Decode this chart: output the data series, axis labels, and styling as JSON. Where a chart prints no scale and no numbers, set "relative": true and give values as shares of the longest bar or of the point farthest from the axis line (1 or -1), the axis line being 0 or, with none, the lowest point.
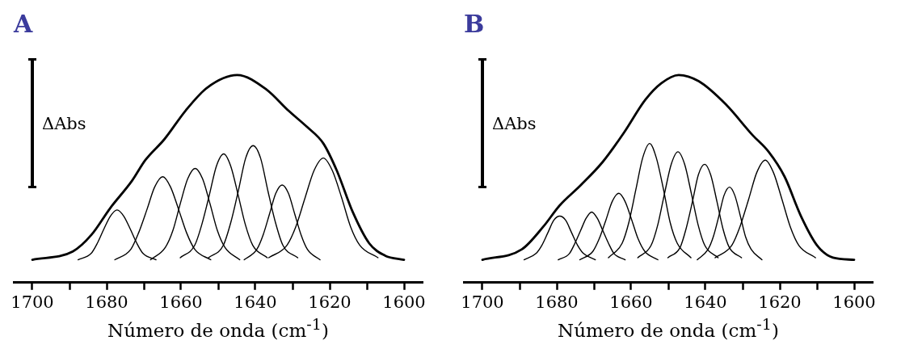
{
  "chart_data": [
    {
      "type": "line",
      "title": "A",
      "xlabel": "Número de onda (cm$^{-1}$)",
      "annotations": [
        "ΔAbs"
      ],
      "relative": true,
      "legend": false,
      "marker": "none",
      "line_style": "solid",
      "xlim": [
        1705,
        1595
      ],
      "xticks": [
        1700,
        {
          "value": 1690,
          "label": null
        },
        1680,
        {
          "value": 1670,
          "label": null
        },
        1660,
        {
          "value": 1650,
          "label": null
        },
        1640,
        {
          "value": 1630,
          "label": null
        },
        1620,
        {
          "value": 1610,
          "label": null
        },
        1600
      ],
      "series": [
        {
          "color": "#000000",
          "x": [
            1700,
            1689.1,
            1684.1,
            1679,
            1673.2,
            1669.6,
            1664.5,
            1658.7,
            1652.9,
            1644.9,
            1637,
            1631.2,
            1626.1,
            1621.7,
            1618.1,
            1613.8,
            1609.4,
            1605.1,
            1600
          ],
          "values": [
            0.11,
            0.15,
            0.23,
            0.36,
            0.49,
            0.59,
            0.69,
            0.83,
            0.94,
            1.0,
            0.93,
            0.83,
            0.75,
            0.67,
            0.54,
            0.34,
            0.19,
            0.13,
            0.11
          ]
        },
        {
          "color": "#000000",
          "x": [
            1687.7,
            1684.2,
            1682.5,
            1680.7,
            1679.0,
            1677.2,
            1675.4,
            1673.7,
            1671.9,
            1670.2,
            1666.7
          ],
          "values": [
            0.11,
            0.14,
            0.19,
            0.26,
            0.32,
            0.35,
            0.32,
            0.26,
            0.19,
            0.14,
            0.11
          ]
        },
        {
          "color": "#000000",
          "x": [
            1677.8,
            1673.5,
            1671.4,
            1669.2,
            1667.1,
            1664.9,
            1662.8,
            1660.6,
            1658.5,
            1656.3,
            1652.0
          ],
          "values": [
            0.11,
            0.16,
            0.24,
            0.35,
            0.46,
            0.51,
            0.46,
            0.35,
            0.24,
            0.16,
            0.11
          ]
        },
        {
          "color": "#000000",
          "x": [
            1668.2,
            1664.2,
            1662.2,
            1660.2,
            1658.2,
            1656.2,
            1654.2,
            1652.2,
            1650.2,
            1648.2,
            1644.2
          ],
          "values": [
            0.11,
            0.17,
            0.25,
            0.38,
            0.5,
            0.55,
            0.5,
            0.38,
            0.25,
            0.17,
            0.11
          ]
        },
        {
          "color": "#000000",
          "x": [
            1660.2,
            1656.3,
            1654.4,
            1652.4,
            1650.5,
            1648.5,
            1646.6,
            1644.6,
            1642.7,
            1640.7,
            1636.8
          ],
          "values": [
            0.12,
            0.18,
            0.28,
            0.42,
            0.56,
            0.62,
            0.56,
            0.42,
            0.28,
            0.18,
            0.12
          ]
        },
        {
          "color": "#000000",
          "x": [
            1652.6,
            1648.6,
            1646.6,
            1644.6,
            1642.6,
            1640.6,
            1638.6,
            1636.6,
            1634.6,
            1632.6,
            1628.6
          ],
          "values": [
            0.12,
            0.18,
            0.29,
            0.44,
            0.6,
            0.66,
            0.6,
            0.44,
            0.29,
            0.18,
            0.12
          ]
        },
        {
          "color": "#000000",
          "x": [
            1643.0,
            1639.6,
            1637.9,
            1636.2,
            1634.5,
            1632.8,
            1631.1,
            1629.4,
            1627.7,
            1626.0,
            1622.6
          ],
          "values": [
            0.11,
            0.16,
            0.23,
            0.33,
            0.43,
            0.47,
            0.43,
            0.33,
            0.23,
            0.16,
            0.11
          ]
        },
        {
          "color": "#000000",
          "x": [
            1636.4,
            1631.5,
            1629.1,
            1626.6,
            1624.2,
            1621.7,
            1619.3,
            1616.8,
            1614.4,
            1611.9,
            1607.0
          ],
          "values": [
            0.12,
            0.18,
            0.27,
            0.41,
            0.54,
            0.6,
            0.54,
            0.41,
            0.27,
            0.18,
            0.12
          ]
        }
      ]
    },
    {
      "type": "line",
      "title": "B",
      "xlabel": "Número de onda (cm$^{-1}$)",
      "annotations": [
        "ΔAbs"
      ],
      "relative": true,
      "legend": false,
      "marker": "none",
      "line_style": "solid",
      "xlim": [
        1705,
        1595
      ],
      "xticks": [
        1700,
        {
          "value": 1690,
          "label": null
        },
        1680,
        {
          "value": 1670,
          "label": null
        },
        1660,
        {
          "value": 1650,
          "label": null
        },
        1640,
        {
          "value": 1630,
          "label": null
        },
        1620,
        {
          "value": 1610,
          "label": null
        },
        1600
      ],
      "series": [
        {
          "color": "#000000",
          "x": [
            1700,
            1689.4,
            1683.6,
            1679.3,
            1673.5,
            1667.7,
            1662,
            1656.2,
            1651.9,
            1647.2,
            1641.8,
            1634.6,
            1627.3,
            1623,
            1618.7,
            1614.3,
            1610,
            1605.7,
            1600
          ],
          "values": [
            0.11,
            0.16,
            0.27,
            0.37,
            0.47,
            0.58,
            0.72,
            0.88,
            0.96,
            1.0,
            0.97,
            0.86,
            0.71,
            0.63,
            0.51,
            0.32,
            0.18,
            0.12,
            0.11
          ]
        },
        {
          "color": "#000000",
          "x": [
            1688.8,
            1685.6,
            1684.0,
            1682.4,
            1680.8,
            1679.2,
            1677.6,
            1676.0,
            1674.4,
            1672.8,
            1669.6
          ],
          "values": [
            0.11,
            0.14,
            0.18,
            0.24,
            0.3,
            0.32,
            0.3,
            0.24,
            0.18,
            0.14,
            0.11
          ]
        },
        {
          "color": "#000000",
          "x": [
            1679.6,
            1676.6,
            1675.1,
            1673.6,
            1672.1,
            1670.6,
            1669.1,
            1667.6,
            1666.1,
            1664.6,
            1661.6
          ],
          "values": [
            0.11,
            0.14,
            0.19,
            0.25,
            0.31,
            0.34,
            0.31,
            0.25,
            0.19,
            0.14,
            0.11
          ]
        },
        {
          "color": "#000000",
          "x": [
            1673.8,
            1670.3,
            1668.6,
            1666.8,
            1665.1,
            1663.3,
            1661.6,
            1659.8,
            1658.1,
            1656.3,
            1652.8
          ],
          "values": [
            0.11,
            0.15,
            0.21,
            0.3,
            0.39,
            0.43,
            0.39,
            0.3,
            0.21,
            0.15,
            0.11
          ]
        },
        {
          "color": "#000000",
          "x": [
            1666.1,
            1662.4,
            1660.6,
            1658.7,
            1656.9,
            1655.0,
            1653.2,
            1651.3,
            1649.5,
            1647.6,
            1643.9
          ],
          "values": [
            0.12,
            0.19,
            0.29,
            0.45,
            0.6,
            0.67,
            0.6,
            0.45,
            0.29,
            0.19,
            0.12
          ]
        },
        {
          "color": "#000000",
          "x": [
            1658.2,
            1654.6,
            1652.8,
            1651.0,
            1649.2,
            1647.4,
            1645.6,
            1643.8,
            1642.0,
            1640.2,
            1636.6
          ],
          "values": [
            0.12,
            0.18,
            0.28,
            0.43,
            0.57,
            0.63,
            0.57,
            0.43,
            0.28,
            0.18,
            0.12
          ]
        },
        {
          "color": "#000000",
          "x": [
            1650.1,
            1646.8,
            1645.2,
            1643.5,
            1641.9,
            1640.2,
            1638.6,
            1636.9,
            1635.3,
            1633.6,
            1630.3
          ],
          "values": [
            0.12,
            0.17,
            0.26,
            0.39,
            0.52,
            0.57,
            0.52,
            0.39,
            0.26,
            0.17,
            0.12
          ]
        },
        {
          "color": "#000000",
          "x": [
            1642.2,
            1639.3,
            1637.9,
            1636.4,
            1635.0,
            1633.5,
            1632.1,
            1630.6,
            1629.2,
            1627.7,
            1624.8
          ],
          "values": [
            0.11,
            0.16,
            0.22,
            0.32,
            0.42,
            0.46,
            0.42,
            0.32,
            0.22,
            0.16,
            0.11
          ]
        },
        {
          "color": "#000000",
          "x": [
            1637.4,
            1632.9,
            1630.7,
            1628.4,
            1626.2,
            1623.9,
            1621.7,
            1619.4,
            1617.2,
            1614.9,
            1610.4
          ],
          "values": [
            0.12,
            0.18,
            0.27,
            0.4,
            0.53,
            0.59,
            0.53,
            0.4,
            0.27,
            0.18,
            0.12
          ]
        }
      ]
    }
  ]
}
